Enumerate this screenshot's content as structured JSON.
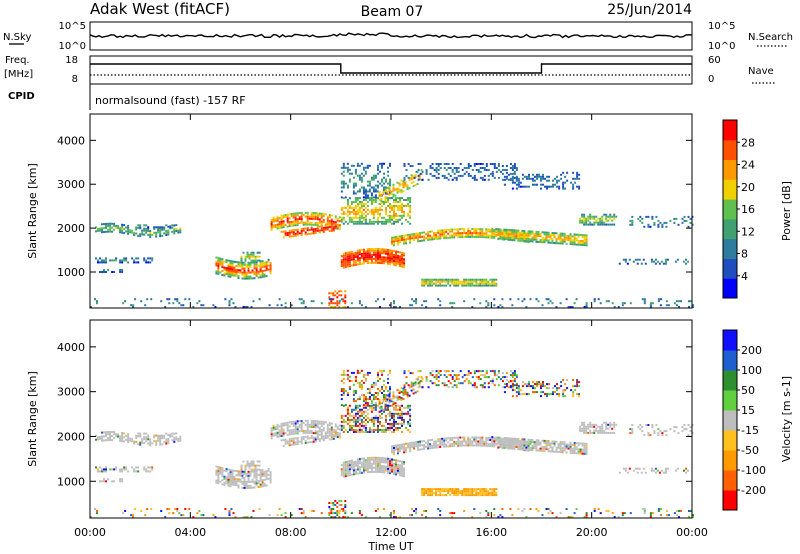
{
  "header": {
    "station": "Adak West (fitACF)",
    "beam": "Beam 07",
    "date": "25/Jun/2014"
  },
  "status_panels": {
    "nsky_label": "N.Sky",
    "nsearch_label": "N.Search",
    "noise_ticks_left": [
      "10^5",
      "10^0"
    ],
    "noise_ticks_right": [
      "10^5",
      "10^0"
    ],
    "freq_label": "Freq.",
    "freq_unit": "[MHz]",
    "freq_ticks": [
      "18",
      "8"
    ],
    "nave_label": "Nave",
    "nave_ticks": [
      "60",
      "0"
    ],
    "cpid_label": "CPID",
    "cpid_text": "normalsound (fast) -157 RF"
  },
  "colors": {
    "power_bar": [
      "#0000ff",
      "#1f4fbf",
      "#2e7d9e",
      "#3fa070",
      "#5fc050",
      "#f0d000",
      "#ff9900",
      "#ff5000",
      "#ff0000"
    ],
    "velocity_bar": [
      "#ff0000",
      "#ff6000",
      "#ff9a00",
      "#ffc020",
      "#bebebe",
      "#60d040",
      "#2e8f30",
      "#1f60d0",
      "#1010ff"
    ],
    "ground_scatter": "#bebebe"
  },
  "chart_data": [
    {
      "type": "heatmap",
      "name": "Power",
      "xlabel": "",
      "ylabel": "Slant Range [km]",
      "xlim": [
        "00:00",
        "24:00"
      ],
      "ylim": [
        180,
        4600
      ],
      "yticks": [
        1000,
        2000,
        3000,
        4000
      ],
      "colorbar": {
        "label": "Power [dB]",
        "range": [
          0,
          32
        ],
        "ticks": [
          4,
          8,
          12,
          16,
          20,
          24,
          28
        ]
      }
    },
    {
      "type": "heatmap",
      "name": "Velocity",
      "xlabel": "Time UT",
      "ylabel": "Slant Range [km]",
      "xlim": [
        "00:00",
        "24:00"
      ],
      "ylim": [
        180,
        4600
      ],
      "xticks": [
        "00:00",
        "04:00",
        "08:00",
        "12:00",
        "16:00",
        "20:00",
        "00:00"
      ],
      "yticks": [
        1000,
        2000,
        3000,
        4000
      ],
      "colorbar": {
        "label": "Velocity [m s-1]",
        "range": [
          -250,
          250
        ],
        "ticks": [
          -200,
          -100,
          -50,
          -15,
          15,
          50,
          100,
          200
        ]
      }
    }
  ]
}
